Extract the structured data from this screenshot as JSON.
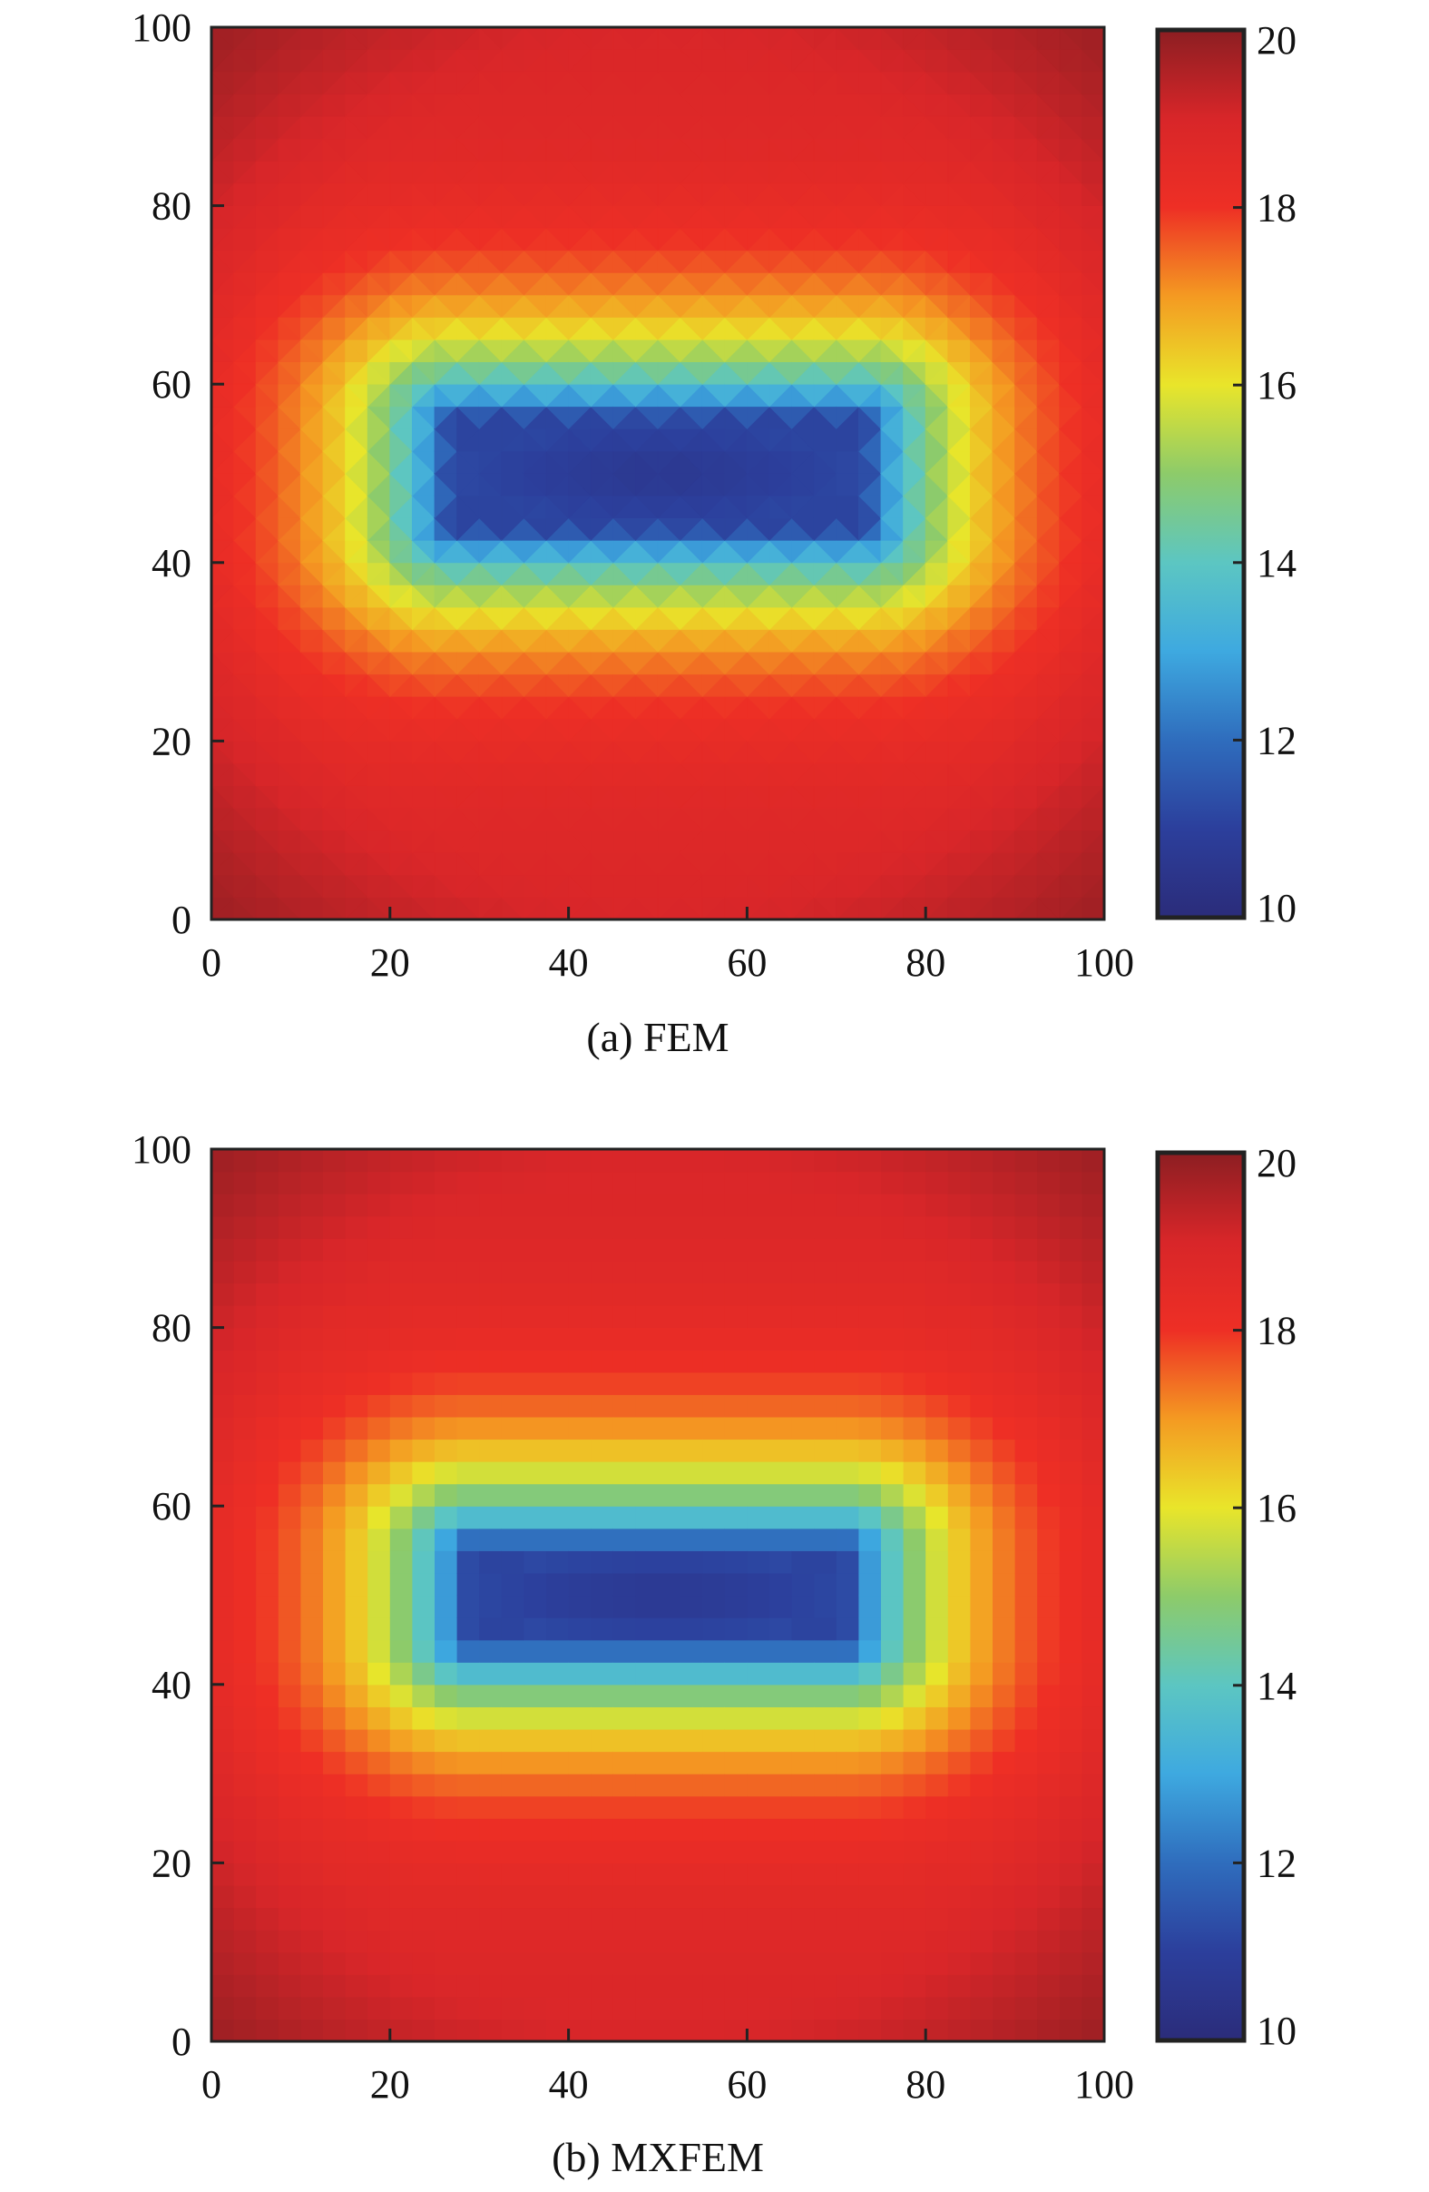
{
  "chart_data": [
    {
      "type": "heatmap",
      "caption": "(a) FEM",
      "xlim": [
        0,
        100
      ],
      "ylim": [
        0,
        100
      ],
      "x_ticks": [
        0,
        20,
        40,
        60,
        80,
        100
      ],
      "y_ticks": [
        0,
        20,
        40,
        60,
        80,
        100
      ],
      "x_tick_labels": [
        "0",
        "20",
        "40",
        "60",
        "80",
        "100"
      ],
      "y_tick_labels": [
        "0",
        "20",
        "40",
        "60",
        "80",
        "100"
      ],
      "colorbar": {
        "range": [
          10,
          20
        ],
        "ticks": [
          10,
          12,
          14,
          16,
          18,
          20
        ],
        "tick_labels": [
          "10",
          "12",
          "14",
          "16",
          "18",
          "20"
        ],
        "colormap": "jet"
      },
      "field": {
        "description_min": 10,
        "max": 20,
        "inclusion_center": [
          50,
          50
        ],
        "inclusion_half_width": 23,
        "inclusion_half_height": 6,
        "mesh": "triangular"
      }
    },
    {
      "type": "heatmap",
      "caption": "(b) MXFEM",
      "xlim": [
        0,
        100
      ],
      "ylim": [
        0,
        100
      ],
      "x_ticks": [
        0,
        20,
        40,
        60,
        80,
        100
      ],
      "y_ticks": [
        0,
        20,
        40,
        60,
        80,
        100
      ],
      "x_tick_labels": [
        "0",
        "20",
        "40",
        "60",
        "80",
        "100"
      ],
      "y_tick_labels": [
        "0",
        "20",
        "40",
        "60",
        "80",
        "100"
      ],
      "colorbar": {
        "range": [
          10,
          20
        ],
        "ticks": [
          10,
          12,
          14,
          16,
          18,
          20
        ],
        "tick_labels": [
          "10",
          "12",
          "14",
          "16",
          "18",
          "20"
        ],
        "colormap": "jet"
      },
      "field": {
        "description_min": 10,
        "max": 20,
        "inclusion_center": [
          50,
          50
        ],
        "inclusion_half_width": 21,
        "inclusion_half_height": 5,
        "mesh": "quadrilateral"
      }
    }
  ]
}
